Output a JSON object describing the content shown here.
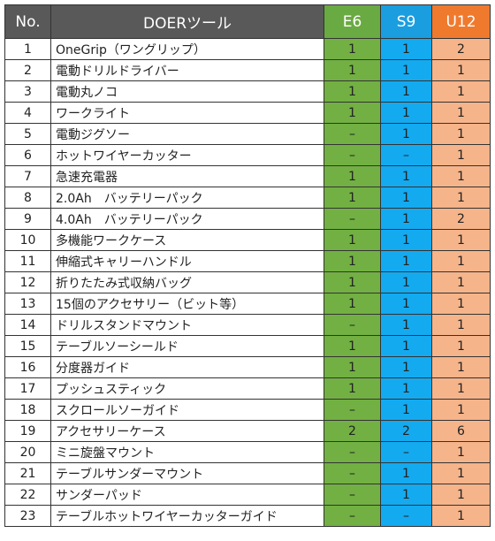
{
  "table": {
    "header": [
      "No.",
      "DOERツール",
      "E6",
      "S9",
      "U12"
    ],
    "rows": [
      [
        "1",
        "OneGrip（ワングリップ）",
        "1",
        "1",
        "2"
      ],
      [
        "2",
        "電動ドリルドライバー",
        "1",
        "1",
        "1"
      ],
      [
        "3",
        "電動丸ノコ",
        "1",
        "1",
        "1"
      ],
      [
        "4",
        "ワークライト",
        "1",
        "1",
        "1"
      ],
      [
        "5",
        "電動ジグソー",
        "–",
        "1",
        "1"
      ],
      [
        "6",
        "ホットワイヤーカッター",
        "–",
        "–",
        "1"
      ],
      [
        "7",
        "急速充電器",
        "1",
        "1",
        "1"
      ],
      [
        "8",
        "2.0Ah　バッテリーパック",
        "1",
        "1",
        "1"
      ],
      [
        "9",
        "4.0Ah　バッテリーパック",
        "–",
        "1",
        "2"
      ],
      [
        "10",
        "多機能ワークケース",
        "1",
        "1",
        "1"
      ],
      [
        "11",
        "伸縮式キャリーハンドル",
        "1",
        "1",
        "1"
      ],
      [
        "12",
        "折りたたみ式収納バッグ",
        "1",
        "1",
        "1"
      ],
      [
        "13",
        "15個のアクセサリー（ビット等）",
        "1",
        "1",
        "1"
      ],
      [
        "14",
        "ドリルスタンドマウント",
        "–",
        "1",
        "1"
      ],
      [
        "15",
        "テーブルソーシールド",
        "1",
        "1",
        "1"
      ],
      [
        "16",
        "分度器ガイド",
        "1",
        "1",
        "1"
      ],
      [
        "17",
        "プッシュスティック",
        "1",
        "1",
        "1"
      ],
      [
        "18",
        "スクロールソーガイド",
        "–",
        "1",
        "1"
      ],
      [
        "19",
        "アクセサリーケース",
        "2",
        "2",
        "6"
      ],
      [
        "20",
        "ミニ旋盤マウント",
        "–",
        "–",
        "1"
      ],
      [
        "21",
        "テーブルサンダーマウント",
        "–",
        "1",
        "1"
      ],
      [
        "22",
        "サンダーパッド",
        "–",
        "1",
        "1"
      ],
      [
        "23",
        "テーブルホットワイヤーカッターガイド",
        "–",
        "–",
        "1"
      ]
    ]
  }
}
